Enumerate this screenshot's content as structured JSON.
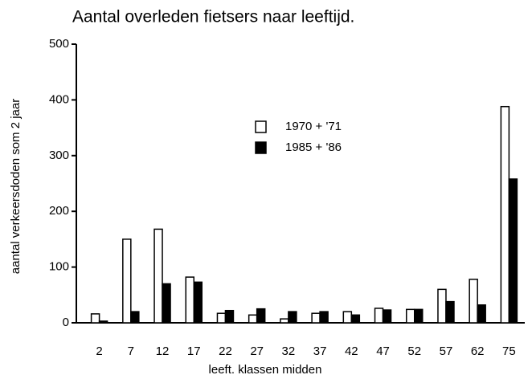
{
  "chart_data": {
    "type": "bar",
    "title": "Aantal overleden fietsers naar leeftijd.",
    "x_label": "leeft. klassen midden",
    "y_label": "aantal verkeersdoden som 2 jaar",
    "categories": [
      "2",
      "7",
      "12",
      "17",
      "22",
      "27",
      "32",
      "37",
      "42",
      "47",
      "52",
      "57",
      "62",
      "75"
    ],
    "series": [
      {
        "name": "1970 + '71",
        "color": "#ffffff",
        "values": [
          16,
          150,
          168,
          82,
          17,
          14,
          7,
          17,
          20,
          26,
          24,
          60,
          78,
          388
        ]
      },
      {
        "name": "1985 + '86",
        "color": "#000000",
        "values": [
          3,
          20,
          70,
          73,
          22,
          25,
          20,
          20,
          14,
          23,
          24,
          38,
          32,
          258
        ]
      }
    ],
    "ylim": [
      0,
      500
    ],
    "yticks": [
      0,
      100,
      200,
      300,
      400,
      500
    ],
    "grid": false
  }
}
